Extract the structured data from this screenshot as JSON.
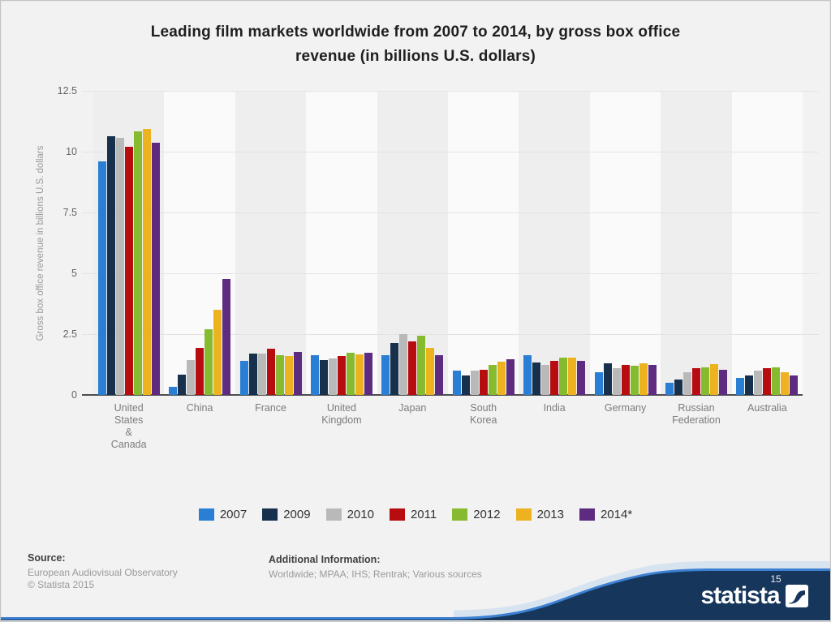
{
  "page": {
    "number": "15"
  },
  "title": {
    "text": "Leading film markets worldwide from 2007 to 2014, by gross box office\nrevenue (in billions U.S. dollars)"
  },
  "chart_data": {
    "type": "bar",
    "title": "Leading film markets worldwide from 2007 to 2014, by gross box office revenue (in billions U.S. dollars)",
    "xlabel": "",
    "ylabel": "Gross box office revenue in billions U.S. dollars",
    "ylim": [
      0,
      12.5
    ],
    "yticks": [
      0,
      2.5,
      5,
      7.5,
      10,
      12.5
    ],
    "grid": true,
    "legend_position": "bottom",
    "categories": [
      "United States & Canada",
      "China",
      "France",
      "United Kingdom",
      "Japan",
      "South Korea",
      "India",
      "Germany",
      "Russian Federation",
      "Australia"
    ],
    "category_labels": [
      "United\nStates\n&\nCanada",
      "China",
      "France",
      "United\nKingdom",
      "Japan",
      "South\nKorea",
      "India",
      "Germany",
      "Russian\nFederation",
      "Australia"
    ],
    "series": [
      {
        "name": "2007",
        "color": "#2a7ed3",
        "values": [
          9.6,
          0.33,
          1.4,
          1.62,
          1.65,
          1.0,
          1.65,
          0.95,
          0.5,
          0.7
        ]
      },
      {
        "name": "2009",
        "color": "#17314d",
        "values": [
          10.65,
          0.85,
          1.7,
          1.42,
          2.15,
          0.8,
          1.35,
          1.3,
          0.65,
          0.8
        ]
      },
      {
        "name": "2010",
        "color": "#b9b9b9",
        "values": [
          10.57,
          1.45,
          1.7,
          1.5,
          2.5,
          1.0,
          1.25,
          1.1,
          0.95,
          1.0
        ]
      },
      {
        "name": "2011",
        "color": "#b70d11",
        "values": [
          10.19,
          1.95,
          1.9,
          1.6,
          2.2,
          1.05,
          1.4,
          1.25,
          1.1,
          1.1
        ]
      },
      {
        "name": "2012",
        "color": "#86bb2f",
        "values": [
          10.84,
          2.7,
          1.62,
          1.72,
          2.45,
          1.25,
          1.55,
          1.2,
          1.15,
          1.12
        ]
      },
      {
        "name": "2013",
        "color": "#edb220",
        "values": [
          10.92,
          3.5,
          1.6,
          1.68,
          1.93,
          1.37,
          1.55,
          1.3,
          1.27,
          0.95
        ]
      },
      {
        "name": "2014*",
        "color": "#5d2b80",
        "values": [
          10.36,
          4.76,
          1.76,
          1.72,
          1.62,
          1.46,
          1.4,
          1.25,
          1.05,
          0.8
        ]
      }
    ]
  },
  "footer": {
    "source_label": "Source:",
    "source_lines": [
      "European Audiovisual Observatory",
      "© Statista 2015"
    ],
    "additional_label": "Additional Information:",
    "additional_lines": [
      "Worldwide; MPAA; IHS; Rentrak; Various sources"
    ],
    "brand": "statista"
  },
  "colors": {
    "page_background": "#f2f2f2",
    "band_light": "#fafafa",
    "band_dark": "#eeeeee",
    "gridline": "#e3e3e3",
    "axis_line": "#4d4d4d",
    "footer_navy": "#16365c",
    "footer_blue": "#3c80d2"
  }
}
